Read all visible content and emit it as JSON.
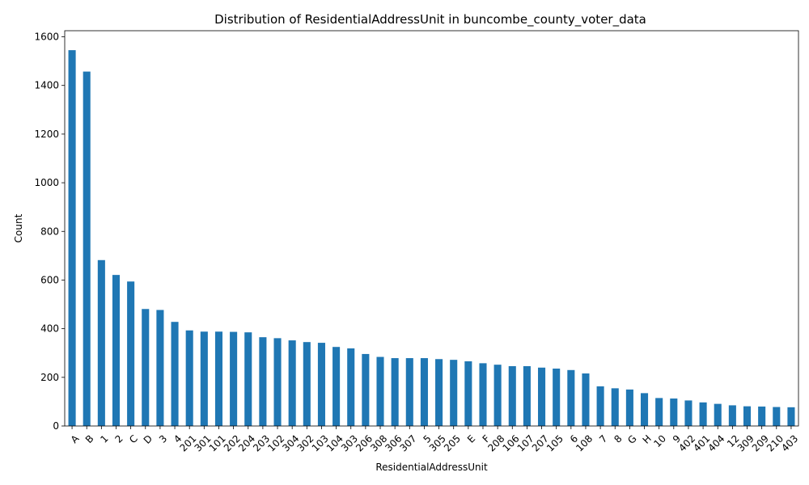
{
  "chart_data": {
    "type": "bar",
    "title": "Distribution of ResidentialAddressUnit in buncombe_county_voter_data",
    "xlabel": "ResidentialAddressUnit",
    "ylabel": "Count",
    "ylim": [
      0,
      1625
    ],
    "yticks": [
      0,
      200,
      400,
      600,
      800,
      1000,
      1200,
      1400,
      1600
    ],
    "grid": false,
    "legend": "none",
    "bar_color": "#1f77b4",
    "categories": [
      "A",
      "B",
      "1",
      "2",
      "C",
      "D",
      "3",
      "4",
      "201",
      "301",
      "101",
      "202",
      "204",
      "203",
      "102",
      "304",
      "302",
      "103",
      "104",
      "303",
      "206",
      "308",
      "306",
      "307",
      "5",
      "305",
      "205",
      "E",
      "F",
      "208",
      "106",
      "107",
      "207",
      "105",
      "6",
      "108",
      "7",
      "8",
      "G",
      "H",
      "10",
      "9",
      "402",
      "401",
      "404",
      "12",
      "309",
      "209",
      "210",
      "403"
    ],
    "values": [
      1545,
      1457,
      682,
      621,
      594,
      481,
      477,
      428,
      393,
      388,
      388,
      387,
      385,
      365,
      361,
      352,
      345,
      342,
      325,
      319,
      296,
      284,
      279,
      279,
      279,
      275,
      272,
      266,
      258,
      252,
      246,
      246,
      240,
      236,
      230,
      216,
      163,
      155,
      150,
      135,
      115,
      113,
      105,
      97,
      91,
      85,
      81,
      80,
      78,
      77
    ]
  }
}
